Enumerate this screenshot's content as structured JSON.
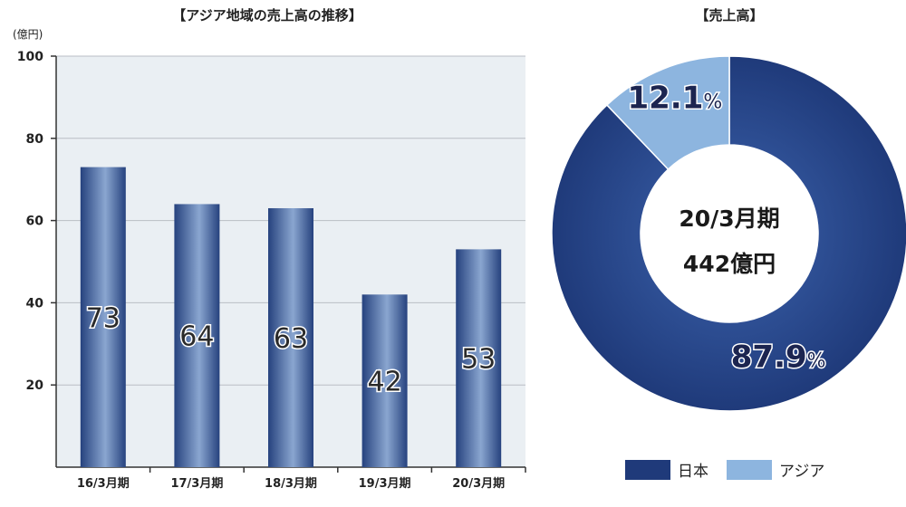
{
  "colors": {
    "bar_dark": "#26427e",
    "bar_light": "#8aa6d0",
    "plot_bg": "#eaeff3",
    "japan": "#1f3a7a",
    "asia": "#8db5df"
  },
  "chart_data": [
    {
      "type": "bar",
      "title": "【アジア地域の売上高の推移】",
      "ylabel": "(億円)",
      "ylim": [
        0,
        100
      ],
      "yticks": [
        20,
        40,
        60,
        80,
        100
      ],
      "grid": true,
      "categories": [
        "16/3月期",
        "17/3月期",
        "18/3月期",
        "19/3月期",
        "20/3月期"
      ],
      "values": [
        73,
        64,
        63,
        42,
        53
      ]
    },
    {
      "type": "pie",
      "title": "【売上高】",
      "center_label_1": "20/3月期",
      "center_label_2": "442億円",
      "legend_position": "bottom",
      "slices": [
        {
          "name": "日本",
          "value": 87.9,
          "label_num": "87.9",
          "label_pct": "%"
        },
        {
          "name": "アジア",
          "value": 12.1,
          "label_num": "12.1",
          "label_pct": "%"
        }
      ]
    }
  ]
}
